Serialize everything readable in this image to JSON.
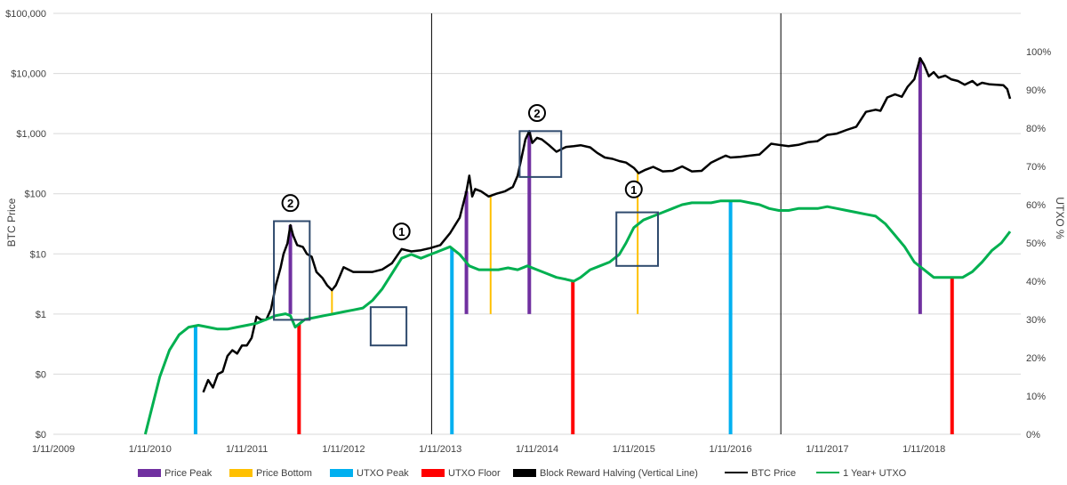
{
  "chart_data": {
    "type": "line",
    "title": "",
    "ylabel": "BTC Price",
    "y2label": "UTXO %",
    "yscale": "log",
    "ylim": [
      0.01,
      100000
    ],
    "y2lim": [
      0,
      1.1
    ],
    "xlim": [
      "2009-01-11",
      "2019-01-11"
    ],
    "yticks": [
      {
        "value": 0.01,
        "label": "$0"
      },
      {
        "value": 0.1,
        "label": "$0"
      },
      {
        "value": 1,
        "label": "$1"
      },
      {
        "value": 10,
        "label": "$10"
      },
      {
        "value": 100,
        "label": "$100"
      },
      {
        "value": 1000,
        "label": "$1,000"
      },
      {
        "value": 10000,
        "label": "$10,000"
      },
      {
        "value": 100000,
        "label": "$100,000"
      }
    ],
    "y2ticks": [
      {
        "value": 0.0,
        "label": "0%"
      },
      {
        "value": 0.1,
        "label": "10%"
      },
      {
        "value": 0.2,
        "label": "20%"
      },
      {
        "value": 0.3,
        "label": "30%"
      },
      {
        "value": 0.4,
        "label": "40%"
      },
      {
        "value": 0.5,
        "label": "50%"
      },
      {
        "value": 0.6,
        "label": "60%"
      },
      {
        "value": 0.7,
        "label": "70%"
      },
      {
        "value": 0.8,
        "label": "80%"
      },
      {
        "value": 0.9,
        "label": "90%"
      },
      {
        "value": 1.0,
        "label": "100%"
      }
    ],
    "xticks": [
      {
        "value": 2009.0,
        "label": "1/11/2009"
      },
      {
        "value": 2010.0,
        "label": "1/11/2010"
      },
      {
        "value": 2011.0,
        "label": "1/11/2011"
      },
      {
        "value": 2012.0,
        "label": "1/11/2012"
      },
      {
        "value": 2013.0,
        "label": "1/11/2013"
      },
      {
        "value": 2014.0,
        "label": "1/11/2014"
      },
      {
        "value": 2015.0,
        "label": "1/11/2015"
      },
      {
        "value": 2016.0,
        "label": "1/11/2016"
      },
      {
        "value": 2017.0,
        "label": "1/11/2017"
      },
      {
        "value": 2018.0,
        "label": "1/11/2018"
      }
    ],
    "series": [
      {
        "name": "BTC Price",
        "color": "#000000",
        "points": [
          [
            2010.55,
            0.05
          ],
          [
            2010.6,
            0.08
          ],
          [
            2010.65,
            0.06
          ],
          [
            2010.7,
            0.1
          ],
          [
            2010.75,
            0.11
          ],
          [
            2010.8,
            0.2
          ],
          [
            2010.85,
            0.25
          ],
          [
            2010.9,
            0.22
          ],
          [
            2010.95,
            0.3
          ],
          [
            2011.0,
            0.3
          ],
          [
            2011.05,
            0.4
          ],
          [
            2011.1,
            0.9
          ],
          [
            2011.15,
            0.8
          ],
          [
            2011.2,
            0.8
          ],
          [
            2011.25,
            1.2
          ],
          [
            2011.3,
            3
          ],
          [
            2011.35,
            6
          ],
          [
            2011.38,
            10
          ],
          [
            2011.42,
            15
          ],
          [
            2011.45,
            30
          ],
          [
            2011.48,
            20
          ],
          [
            2011.52,
            14
          ],
          [
            2011.58,
            13
          ],
          [
            2011.62,
            10
          ],
          [
            2011.67,
            9
          ],
          [
            2011.72,
            5
          ],
          [
            2011.78,
            4
          ],
          [
            2011.83,
            3
          ],
          [
            2011.88,
            2.5
          ],
          [
            2011.92,
            3
          ],
          [
            2011.96,
            4.2
          ],
          [
            2012.0,
            6
          ],
          [
            2012.1,
            5
          ],
          [
            2012.2,
            5
          ],
          [
            2012.3,
            5
          ],
          [
            2012.4,
            5.5
          ],
          [
            2012.5,
            7
          ],
          [
            2012.6,
            12
          ],
          [
            2012.7,
            11
          ],
          [
            2012.8,
            11.5
          ],
          [
            2012.9,
            12.5
          ],
          [
            2013.0,
            14
          ],
          [
            2013.1,
            22
          ],
          [
            2013.2,
            40
          ],
          [
            2013.27,
            110
          ],
          [
            2013.3,
            200
          ],
          [
            2013.33,
            90
          ],
          [
            2013.36,
            120
          ],
          [
            2013.42,
            110
          ],
          [
            2013.5,
            90
          ],
          [
            2013.58,
            100
          ],
          [
            2013.67,
            110
          ],
          [
            2013.75,
            130
          ],
          [
            2013.8,
            200
          ],
          [
            2013.84,
            400
          ],
          [
            2013.88,
            800
          ],
          [
            2013.92,
            1100
          ],
          [
            2013.95,
            700
          ],
          [
            2014.0,
            850
          ],
          [
            2014.05,
            800
          ],
          [
            2014.12,
            650
          ],
          [
            2014.2,
            500
          ],
          [
            2014.3,
            600
          ],
          [
            2014.38,
            620
          ],
          [
            2014.45,
            640
          ],
          [
            2014.55,
            590
          ],
          [
            2014.62,
            480
          ],
          [
            2014.7,
            400
          ],
          [
            2014.78,
            380
          ],
          [
            2014.85,
            350
          ],
          [
            2014.92,
            330
          ],
          [
            2015.0,
            270
          ],
          [
            2015.05,
            220
          ],
          [
            2015.12,
            250
          ],
          [
            2015.2,
            280
          ],
          [
            2015.3,
            235
          ],
          [
            2015.4,
            240
          ],
          [
            2015.5,
            285
          ],
          [
            2015.6,
            235
          ],
          [
            2015.7,
            240
          ],
          [
            2015.8,
            330
          ],
          [
            2015.88,
            380
          ],
          [
            2015.95,
            430
          ],
          [
            2016.0,
            400
          ],
          [
            2016.1,
            410
          ],
          [
            2016.2,
            430
          ],
          [
            2016.3,
            450
          ],
          [
            2016.42,
            680
          ],
          [
            2016.5,
            650
          ],
          [
            2016.6,
            620
          ],
          [
            2016.7,
            650
          ],
          [
            2016.8,
            720
          ],
          [
            2016.9,
            750
          ],
          [
            2017.0,
            950
          ],
          [
            2017.1,
            1000
          ],
          [
            2017.2,
            1150
          ],
          [
            2017.3,
            1300
          ],
          [
            2017.4,
            2300
          ],
          [
            2017.5,
            2500
          ],
          [
            2017.55,
            2400
          ],
          [
            2017.62,
            4000
          ],
          [
            2017.7,
            4500
          ],
          [
            2017.77,
            4100
          ],
          [
            2017.83,
            6000
          ],
          [
            2017.9,
            8000
          ],
          [
            2017.96,
            18000
          ],
          [
            2018.0,
            14000
          ],
          [
            2018.05,
            9000
          ],
          [
            2018.1,
            10500
          ],
          [
            2018.15,
            8500
          ],
          [
            2018.22,
            9200
          ],
          [
            2018.28,
            8000
          ],
          [
            2018.35,
            7500
          ],
          [
            2018.42,
            6500
          ],
          [
            2018.5,
            7500
          ],
          [
            2018.55,
            6400
          ],
          [
            2018.6,
            7000
          ],
          [
            2018.68,
            6600
          ],
          [
            2018.75,
            6500
          ],
          [
            2018.82,
            6400
          ],
          [
            2018.86,
            5500
          ],
          [
            2018.89,
            3800
          ]
        ]
      },
      {
        "name": "1 Year+ UTXO",
        "color": "#00b050",
        "points": [
          [
            2009.95,
            0.0
          ],
          [
            2010.0,
            0.05
          ],
          [
            2010.1,
            0.15
          ],
          [
            2010.2,
            0.22
          ],
          [
            2010.3,
            0.26
          ],
          [
            2010.4,
            0.28
          ],
          [
            2010.5,
            0.285
          ],
          [
            2010.6,
            0.28
          ],
          [
            2010.7,
            0.275
          ],
          [
            2010.8,
            0.275
          ],
          [
            2010.9,
            0.28
          ],
          [
            2011.0,
            0.285
          ],
          [
            2011.1,
            0.29
          ],
          [
            2011.2,
            0.3
          ],
          [
            2011.3,
            0.31
          ],
          [
            2011.4,
            0.315
          ],
          [
            2011.45,
            0.31
          ],
          [
            2011.5,
            0.28
          ],
          [
            2011.55,
            0.29
          ],
          [
            2011.6,
            0.3
          ],
          [
            2011.7,
            0.305
          ],
          [
            2011.8,
            0.31
          ],
          [
            2011.9,
            0.315
          ],
          [
            2012.0,
            0.32
          ],
          [
            2012.1,
            0.325
          ],
          [
            2012.2,
            0.33
          ],
          [
            2012.3,
            0.35
          ],
          [
            2012.4,
            0.38
          ],
          [
            2012.5,
            0.42
          ],
          [
            2012.6,
            0.46
          ],
          [
            2012.7,
            0.47
          ],
          [
            2012.8,
            0.46
          ],
          [
            2012.9,
            0.47
          ],
          [
            2013.0,
            0.48
          ],
          [
            2013.1,
            0.49
          ],
          [
            2013.2,
            0.47
          ],
          [
            2013.3,
            0.44
          ],
          [
            2013.4,
            0.43
          ],
          [
            2013.5,
            0.43
          ],
          [
            2013.6,
            0.43
          ],
          [
            2013.7,
            0.435
          ],
          [
            2013.8,
            0.43
          ],
          [
            2013.9,
            0.44
          ],
          [
            2014.0,
            0.43
          ],
          [
            2014.1,
            0.42
          ],
          [
            2014.2,
            0.41
          ],
          [
            2014.3,
            0.405
          ],
          [
            2014.38,
            0.4
          ],
          [
            2014.45,
            0.41
          ],
          [
            2014.55,
            0.43
          ],
          [
            2014.65,
            0.44
          ],
          [
            2014.75,
            0.45
          ],
          [
            2014.85,
            0.47
          ],
          [
            2014.92,
            0.5
          ],
          [
            2015.0,
            0.54
          ],
          [
            2015.1,
            0.56
          ],
          [
            2015.2,
            0.57
          ],
          [
            2015.3,
            0.58
          ],
          [
            2015.4,
            0.59
          ],
          [
            2015.5,
            0.6
          ],
          [
            2015.6,
            0.605
          ],
          [
            2015.7,
            0.605
          ],
          [
            2015.8,
            0.605
          ],
          [
            2015.9,
            0.61
          ],
          [
            2016.0,
            0.61
          ],
          [
            2016.1,
            0.61
          ],
          [
            2016.2,
            0.605
          ],
          [
            2016.3,
            0.6
          ],
          [
            2016.4,
            0.59
          ],
          [
            2016.5,
            0.585
          ],
          [
            2016.6,
            0.585
          ],
          [
            2016.7,
            0.59
          ],
          [
            2016.8,
            0.59
          ],
          [
            2016.9,
            0.59
          ],
          [
            2017.0,
            0.595
          ],
          [
            2017.1,
            0.59
          ],
          [
            2017.2,
            0.585
          ],
          [
            2017.3,
            0.58
          ],
          [
            2017.4,
            0.575
          ],
          [
            2017.5,
            0.57
          ],
          [
            2017.6,
            0.55
          ],
          [
            2017.7,
            0.52
          ],
          [
            2017.8,
            0.49
          ],
          [
            2017.9,
            0.45
          ],
          [
            2018.0,
            0.43
          ],
          [
            2018.1,
            0.41
          ],
          [
            2018.2,
            0.41
          ],
          [
            2018.3,
            0.41
          ],
          [
            2018.4,
            0.41
          ],
          [
            2018.5,
            0.425
          ],
          [
            2018.6,
            0.45
          ],
          [
            2018.7,
            0.48
          ],
          [
            2018.8,
            0.5
          ],
          [
            2018.89,
            0.53
          ]
        ]
      }
    ],
    "price_peaks": [
      2011.45,
      2013.27,
      2013.92,
      2017.96
    ],
    "price_bottoms": [
      2011.88,
      2013.52,
      2015.04
    ],
    "utxo_peaks": [
      2010.47,
      2013.12,
      2016.0
    ],
    "utxo_floors": [
      2011.54,
      2014.37,
      2018.29
    ],
    "halvings": [
      2012.91,
      2016.52
    ],
    "annotations": [
      {
        "label": "2",
        "x": 2011.45,
        "y": 70
      },
      {
        "label": "2",
        "x": 2014.0,
        "y": 2200
      },
      {
        "label": "1",
        "x": 2012.6,
        "y": 0.53
      },
      {
        "label": "1",
        "x": 2015.0,
        "y": 0.64
      }
    ],
    "boxes": [
      {
        "x0": 2011.28,
        "x1": 2011.65,
        "y0": 0.8,
        "y1": 35
      },
      {
        "x0": 2013.82,
        "x1": 2014.25,
        "y0": 190,
        "y1": 1100
      },
      {
        "x0": 2012.28,
        "x1": 2012.65,
        "y0": 0.3,
        "y1": 1.3
      },
      {
        "x0": 2014.82,
        "x1": 2015.25,
        "y0": 0.44,
        "y1": 0.58
      }
    ],
    "legend": {
      "position": "bottom",
      "items": [
        {
          "label": "Price Peak",
          "color": "#7030a0",
          "kind": "box"
        },
        {
          "label": "Price Bottom",
          "color": "#ffc000",
          "kind": "box"
        },
        {
          "label": "UTXO Peak",
          "color": "#00b0f0",
          "kind": "box"
        },
        {
          "label": "UTXO Floor",
          "color": "#ff0000",
          "kind": "box"
        },
        {
          "label": "Block Reward Halving (Vertical Line)",
          "color": "#000000",
          "kind": "box"
        },
        {
          "label": "BTC Price",
          "color": "#000000",
          "kind": "line"
        },
        {
          "label": "1 Year+ UTXO",
          "color": "#00b050",
          "kind": "line"
        }
      ]
    },
    "colors": {
      "price_peak": "#7030a0",
      "price_bottom": "#ffc000",
      "utxo_peak": "#00b0f0",
      "utxo_floor": "#ff0000",
      "halving": "#000000",
      "box": "#2f4a6d",
      "grid": "#d9d9d9"
    }
  }
}
